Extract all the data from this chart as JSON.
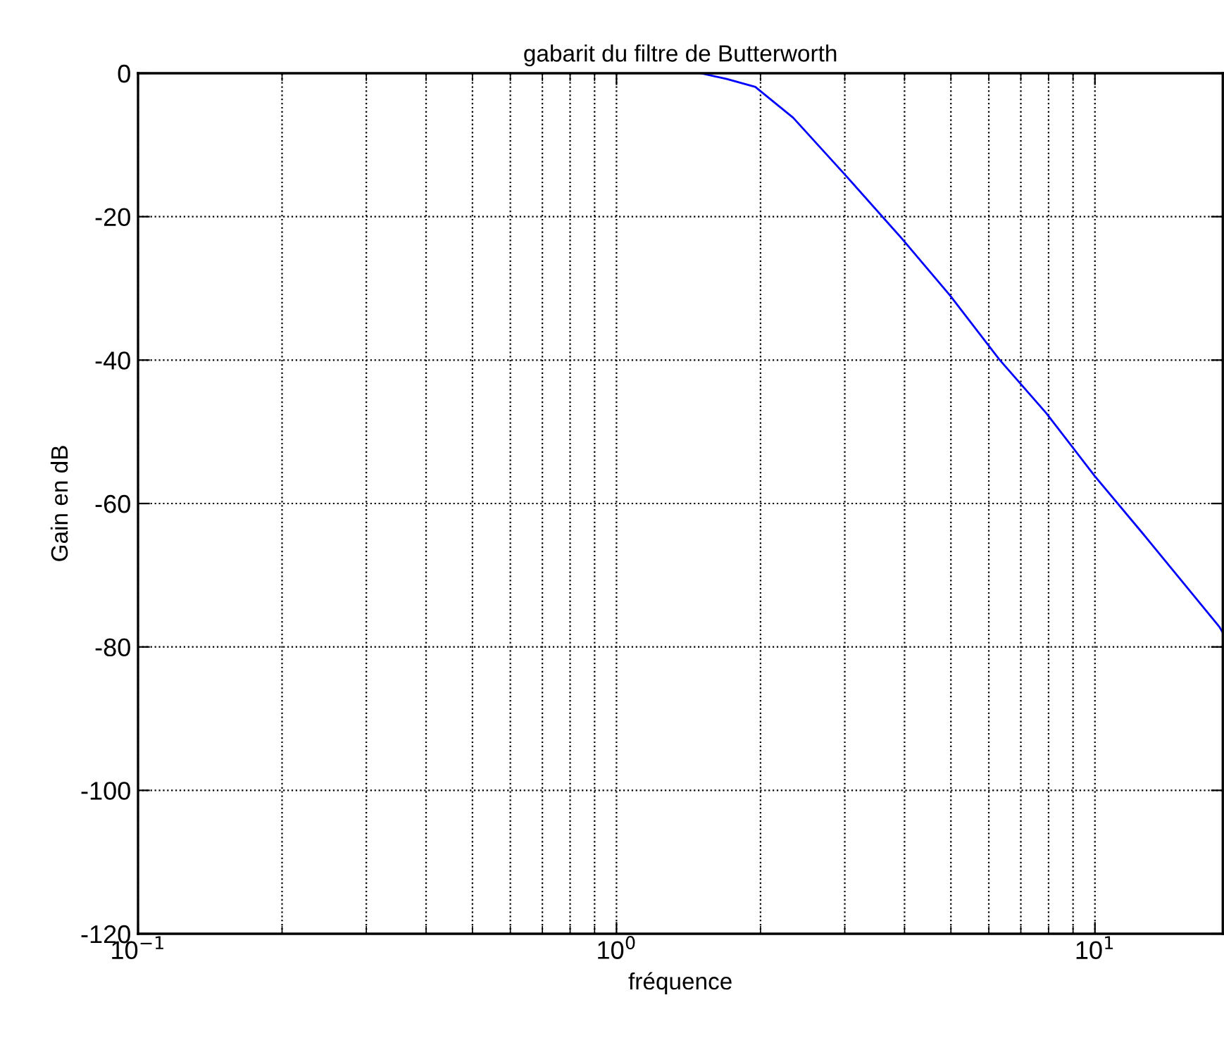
{
  "chart_data": {
    "type": "line",
    "title": "gabarit du filtre de Butterworth",
    "xlabel": "fréquence",
    "ylabel": "Gain en dB",
    "log": "x",
    "grid": true,
    "line_style": "solid",
    "marker": "none",
    "xlim": [
      0.1,
      18.5
    ],
    "ylim": [
      -120,
      0
    ],
    "xticks": [
      {
        "value": 0.1,
        "label": "10$^{−1}$"
      },
      {
        "value": 1,
        "label": "10$^{0}$"
      },
      {
        "value": 10,
        "label": "10$^{1}$"
      }
    ],
    "yticks": [
      -120,
      -100,
      -80,
      -60,
      -40,
      -20,
      0
    ],
    "series": [
      {
        "color": "#0000ff",
        "x": [
          1.5,
          1.7,
          1.95,
          2.34,
          2.99,
          3.93,
          4.98,
          6.31,
          7.91,
          10.0,
          12.56,
          18.2,
          18.5
        ],
        "values": [
          0,
          -0.8,
          -1.9,
          -6.2,
          -14.0,
          -22.9,
          -31.0,
          -39.9,
          -47.4,
          -56.2,
          -64.1,
          -77.2,
          -78
        ]
      }
    ]
  }
}
